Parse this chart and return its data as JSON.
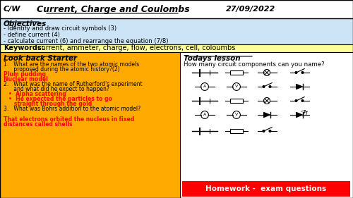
{
  "title_cw": "C/W",
  "title_main": "Current, Charge and Coulombs",
  "title_date": "27/09/2022",
  "bg_color": "#cce0f0",
  "header_bg": "#ffffff",
  "objectives_title": "Objectives",
  "objectives": [
    "- Identify and draw circuit symbols (3)",
    "- define current (4)",
    "- calculate current (6) and rearrange the equation (7/8)"
  ],
  "keywords_bold": "Keywords:",
  "keywords_text": " current, ammeter, charge, flow, electrons, cell, coloumbs",
  "keywords_bg": "#ffff99",
  "starter_title": "Look back Starter",
  "starter_bg": "#ffaa00",
  "todays_title": "Todays lesson",
  "todays_text": "How many circuit components can you name?",
  "todays_bg": "#ffffff",
  "homework_text": "Homework -  exam questions",
  "homework_bg": "#ff0000",
  "homework_text_color": "#ffffff"
}
